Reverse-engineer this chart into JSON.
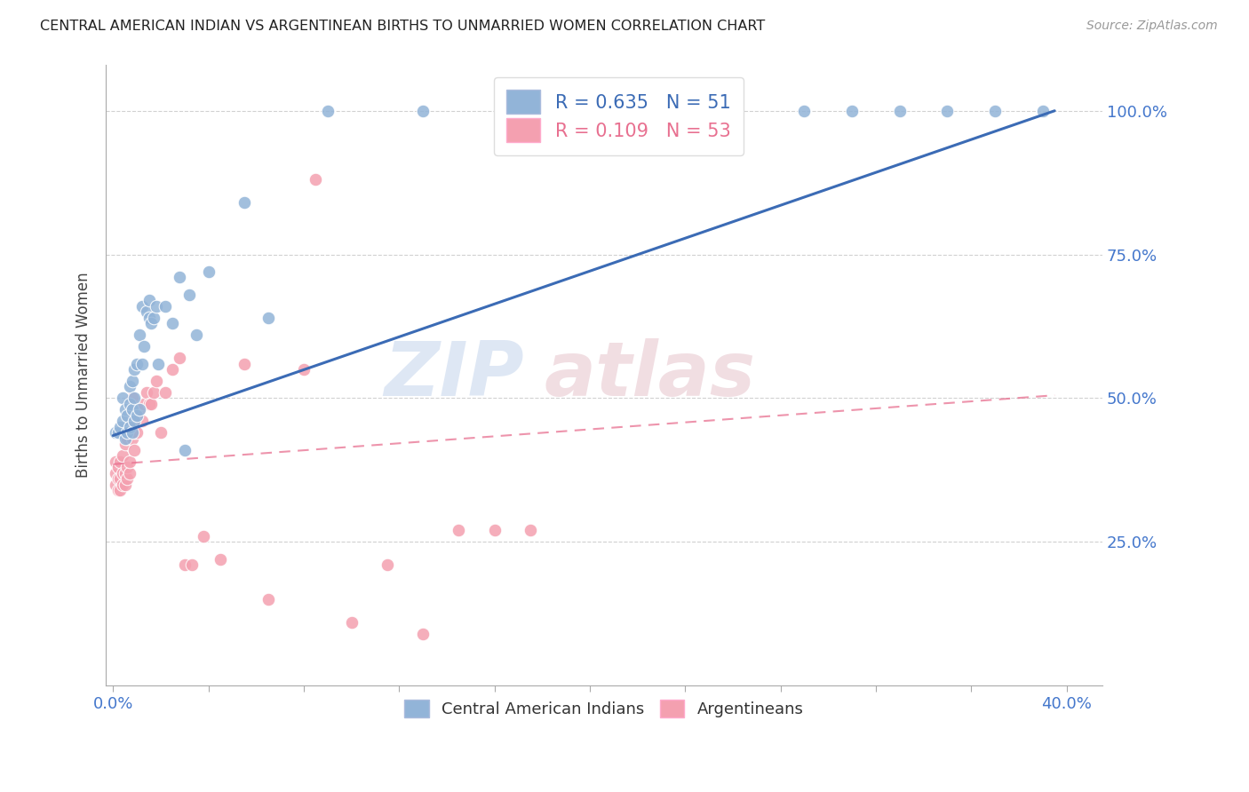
{
  "title": "CENTRAL AMERICAN INDIAN VS ARGENTINEAN BIRTHS TO UNMARRIED WOMEN CORRELATION CHART",
  "source": "Source: ZipAtlas.com",
  "ylabel": "Births to Unmarried Women",
  "legend1_label": "R = 0.635   N = 51",
  "legend2_label": "R = 0.109   N = 53",
  "legend_x_label": "Central American Indians",
  "legend_y_label": "Argentineans",
  "watermark_left": "ZIP",
  "watermark_right": "atlas",
  "blue_color": "#92B4D8",
  "pink_color": "#F4A0B0",
  "blue_line_color": "#3B6BB5",
  "pink_line_color": "#E87090",
  "title_color": "#222222",
  "axis_label_color": "#4477CC",
  "grid_color": "#CCCCCC",
  "background_color": "#FFFFFF",
  "blue_scatter_x": [
    0.001,
    0.002,
    0.003,
    0.004,
    0.004,
    0.005,
    0.005,
    0.006,
    0.006,
    0.007,
    0.007,
    0.007,
    0.008,
    0.008,
    0.008,
    0.009,
    0.009,
    0.009,
    0.01,
    0.01,
    0.011,
    0.011,
    0.012,
    0.012,
    0.013,
    0.014,
    0.015,
    0.015,
    0.016,
    0.017,
    0.018,
    0.019,
    0.022,
    0.025,
    0.028,
    0.03,
    0.032,
    0.035,
    0.04,
    0.055,
    0.065,
    0.09,
    0.13,
    0.2,
    0.25,
    0.29,
    0.31,
    0.33,
    0.35,
    0.37,
    0.39
  ],
  "blue_scatter_y": [
    0.44,
    0.44,
    0.45,
    0.46,
    0.5,
    0.43,
    0.48,
    0.44,
    0.47,
    0.45,
    0.49,
    0.52,
    0.44,
    0.48,
    0.53,
    0.46,
    0.5,
    0.55,
    0.47,
    0.56,
    0.48,
    0.61,
    0.56,
    0.66,
    0.59,
    0.65,
    0.64,
    0.67,
    0.63,
    0.64,
    0.66,
    0.56,
    0.66,
    0.63,
    0.71,
    0.41,
    0.68,
    0.61,
    0.72,
    0.84,
    0.64,
    1.0,
    1.0,
    1.0,
    1.0,
    1.0,
    1.0,
    1.0,
    1.0,
    1.0,
    1.0
  ],
  "pink_scatter_x": [
    0.001,
    0.001,
    0.001,
    0.002,
    0.002,
    0.002,
    0.003,
    0.003,
    0.003,
    0.004,
    0.004,
    0.004,
    0.005,
    0.005,
    0.005,
    0.006,
    0.006,
    0.006,
    0.007,
    0.007,
    0.007,
    0.008,
    0.008,
    0.008,
    0.009,
    0.009,
    0.01,
    0.011,
    0.012,
    0.013,
    0.014,
    0.015,
    0.016,
    0.017,
    0.018,
    0.02,
    0.022,
    0.025,
    0.028,
    0.03,
    0.033,
    0.038,
    0.045,
    0.055,
    0.065,
    0.08,
    0.1,
    0.115,
    0.13,
    0.145,
    0.16,
    0.175,
    0.085
  ],
  "pink_scatter_y": [
    0.35,
    0.37,
    0.39,
    0.34,
    0.36,
    0.38,
    0.34,
    0.36,
    0.39,
    0.35,
    0.37,
    0.4,
    0.35,
    0.37,
    0.42,
    0.36,
    0.38,
    0.43,
    0.37,
    0.39,
    0.45,
    0.43,
    0.46,
    0.5,
    0.41,
    0.44,
    0.44,
    0.48,
    0.46,
    0.49,
    0.51,
    0.49,
    0.49,
    0.51,
    0.53,
    0.44,
    0.51,
    0.55,
    0.57,
    0.21,
    0.21,
    0.26,
    0.22,
    0.56,
    0.15,
    0.55,
    0.11,
    0.21,
    0.09,
    0.27,
    0.27,
    0.27,
    0.88
  ],
  "blue_line_x": [
    0.0,
    0.395
  ],
  "blue_line_y": [
    0.435,
    1.0
  ],
  "pink_line_x": [
    0.0,
    0.395
  ],
  "pink_line_y": [
    0.385,
    0.505
  ],
  "xlim": [
    -0.003,
    0.415
  ],
  "ylim": [
    0.0,
    1.08
  ],
  "xticks": [
    0.0,
    0.04,
    0.08,
    0.12,
    0.16,
    0.2,
    0.24,
    0.28,
    0.32,
    0.36,
    0.4
  ],
  "yticks_right": [
    0.25,
    0.5,
    0.75,
    1.0
  ],
  "ytick_labels_right": [
    "25.0%",
    "50.0%",
    "75.0%",
    "100.0%"
  ]
}
